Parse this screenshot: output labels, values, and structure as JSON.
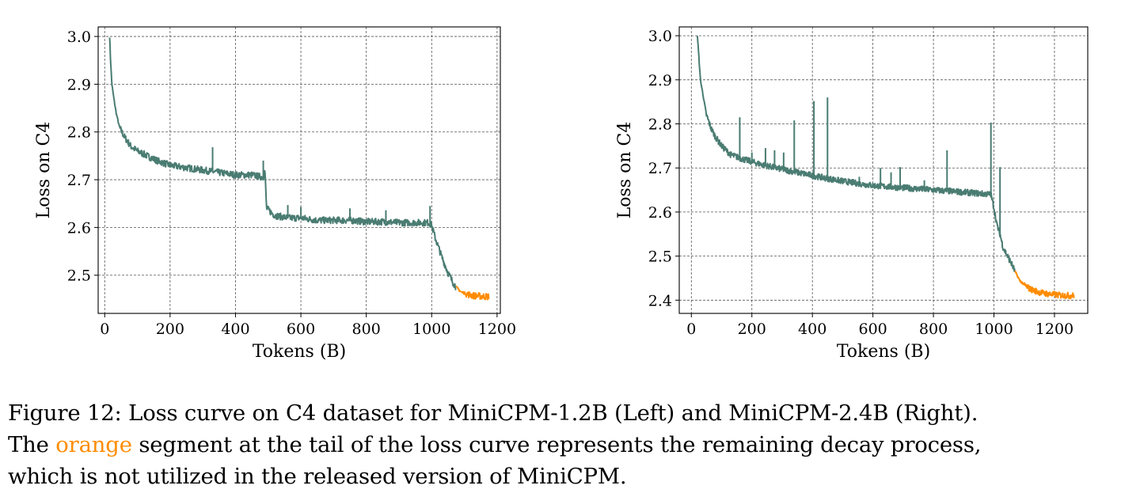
{
  "figure": {
    "caption_line1": "Figure 12: Loss curve on C4 dataset for MiniCPM-1.2B (Left) and MiniCPM-2.4B (Right).",
    "caption_line2_pre": "The ",
    "caption_line2_highlight": "orange",
    "caption_line2_post": " segment at the tail of the loss curve represents the remaining decay process,",
    "caption_line3": "which is not utilized in the released version of MiniCPM."
  },
  "colors": {
    "main": "#4a7c72",
    "decay": "#ff8c00",
    "grid": "#555555"
  },
  "chart_data": [
    {
      "type": "line",
      "xlabel": "Tokens (B)",
      "ylabel": "Loss on C4",
      "xlim": [
        -20,
        1210
      ],
      "ylim": [
        2.42,
        3.02
      ],
      "xticks": [
        0,
        200,
        400,
        600,
        800,
        1000,
        1200
      ],
      "yticks": [
        2.5,
        2.6,
        2.7,
        2.8,
        2.9,
        3.0
      ],
      "ytick_labels": [
        "2.5",
        "2.6",
        "2.7",
        "2.8",
        "2.9",
        "3.0"
      ],
      "grid": true,
      "series": [
        {
          "color": "#4a7c72",
          "x": [
            15,
            18,
            22,
            28,
            35,
            45,
            60,
            80,
            100,
            130,
            160,
            200,
            250,
            300,
            350,
            400,
            450,
            485,
            490,
            495,
            520,
            560,
            600,
            650,
            700,
            750,
            800,
            850,
            900,
            950,
            990,
            1000,
            1010,
            1030,
            1050,
            1065,
            1075
          ],
          "y": [
            3.0,
            2.95,
            2.9,
            2.87,
            2.84,
            2.81,
            2.79,
            2.77,
            2.76,
            2.75,
            2.74,
            2.73,
            2.725,
            2.72,
            2.715,
            2.71,
            2.71,
            2.705,
            2.72,
            2.64,
            2.625,
            2.62,
            2.62,
            2.615,
            2.615,
            2.615,
            2.612,
            2.612,
            2.61,
            2.61,
            2.61,
            2.605,
            2.58,
            2.54,
            2.505,
            2.485,
            2.475
          ]
        },
        {
          "color": "#ff8c00",
          "x": [
            1075,
            1090,
            1110,
            1130,
            1150,
            1175
          ],
          "y": [
            2.475,
            2.465,
            2.46,
            2.457,
            2.456,
            2.455
          ]
        }
      ],
      "spikes": [
        {
          "x": 330,
          "y": 2.768
        },
        {
          "x": 485,
          "y": 2.74
        },
        {
          "x": 560,
          "y": 2.647
        },
        {
          "x": 600,
          "y": 2.643
        },
        {
          "x": 750,
          "y": 2.64
        },
        {
          "x": 860,
          "y": 2.636
        },
        {
          "x": 995,
          "y": 2.645
        }
      ]
    },
    {
      "type": "line",
      "xlabel": "Tokens (B)",
      "ylabel": "Loss on C4",
      "xlim": [
        -40,
        1310
      ],
      "ylim": [
        2.37,
        3.02
      ],
      "xticks": [
        0,
        200,
        400,
        600,
        800,
        1000,
        1200
      ],
      "yticks": [
        2.4,
        2.5,
        2.6,
        2.7,
        2.8,
        2.9,
        3.0
      ],
      "ytick_labels": [
        "2.4",
        "2.5",
        "2.6",
        "2.7",
        "2.8",
        "2.9",
        "3.0"
      ],
      "grid": true,
      "series": [
        {
          "color": "#4a7c72",
          "x": [
            20,
            25,
            30,
            40,
            50,
            65,
            80,
            100,
            130,
            170,
            220,
            280,
            350,
            420,
            500,
            600,
            700,
            800,
            900,
            990,
            1000,
            1010,
            1020,
            1030,
            1045,
            1060,
            1070
          ],
          "y": [
            3.0,
            2.95,
            2.9,
            2.86,
            2.82,
            2.79,
            2.77,
            2.75,
            2.73,
            2.72,
            2.71,
            2.7,
            2.69,
            2.68,
            2.67,
            2.66,
            2.655,
            2.65,
            2.645,
            2.64,
            2.61,
            2.57,
            2.55,
            2.52,
            2.5,
            2.48,
            2.465
          ]
        },
        {
          "color": "#ff8c00",
          "x": [
            1070,
            1085,
            1100,
            1120,
            1150,
            1180,
            1220,
            1265
          ],
          "y": [
            2.465,
            2.445,
            2.435,
            2.425,
            2.418,
            2.414,
            2.411,
            2.41
          ]
        }
      ],
      "spikes": [
        {
          "x": 160,
          "y": 2.815
        },
        {
          "x": 200,
          "y": 2.735
        },
        {
          "x": 245,
          "y": 2.745
        },
        {
          "x": 275,
          "y": 2.74
        },
        {
          "x": 305,
          "y": 2.735
        },
        {
          "x": 340,
          "y": 2.808
        },
        {
          "x": 405,
          "y": 2.852
        },
        {
          "x": 450,
          "y": 2.86
        },
        {
          "x": 555,
          "y": 2.68
        },
        {
          "x": 625,
          "y": 2.7
        },
        {
          "x": 660,
          "y": 2.69
        },
        {
          "x": 690,
          "y": 2.702
        },
        {
          "x": 770,
          "y": 2.672
        },
        {
          "x": 845,
          "y": 2.74
        },
        {
          "x": 990,
          "y": 2.803
        },
        {
          "x": 1020,
          "y": 2.702
        }
      ]
    }
  ]
}
